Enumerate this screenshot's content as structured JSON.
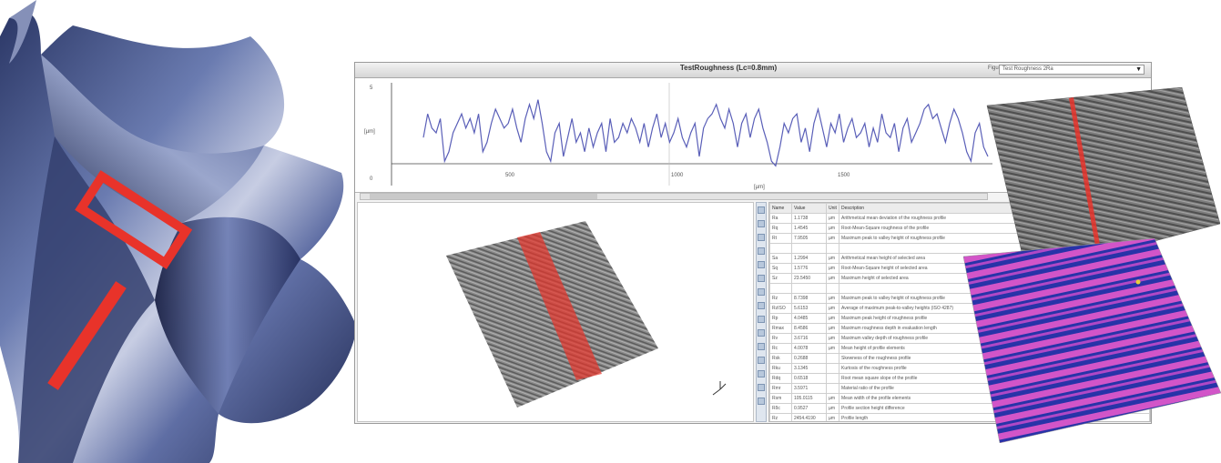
{
  "window": {
    "title": "TestRoughness (Lc=0.8mm)",
    "figure_label": "Figure",
    "figure_value": "Test Roughness 2Ra",
    "figure_arrow": "▼"
  },
  "profile_chart": {
    "y_unit": "[µm]",
    "x_unit": "[µm]",
    "x_ticks": [
      "500",
      "1000",
      "1500"
    ],
    "y_ticks": [
      "5",
      "0"
    ],
    "line_color": "#5a5fb8",
    "trace": [
      -1,
      4,
      1,
      0,
      3,
      -6,
      -4,
      0,
      2,
      4,
      1,
      3,
      0,
      4,
      -4,
      -2,
      2,
      5,
      3,
      1,
      2,
      5,
      1,
      -2,
      3,
      6,
      3,
      7,
      2,
      -4,
      -6,
      0,
      2,
      -5,
      -1,
      3,
      -2,
      0,
      -4,
      1,
      -3,
      0,
      2,
      -4,
      3,
      -2,
      -1,
      2,
      0,
      3,
      1,
      -2,
      2,
      -3,
      1,
      4,
      -1,
      2,
      -2,
      0,
      3,
      -1,
      -3,
      0,
      2,
      -5,
      1,
      3,
      4,
      6,
      3,
      1,
      5,
      2,
      -3,
      2,
      4,
      -1,
      3,
      5,
      1,
      -2,
      -6,
      -7,
      -3,
      2,
      0,
      3,
      4,
      -2,
      1,
      -4,
      2,
      5,
      1,
      -3,
      2,
      0,
      4,
      -2,
      1,
      3,
      -1,
      0,
      2,
      -3,
      1,
      -2,
      4,
      0,
      -1,
      2,
      -4,
      1,
      3,
      -2,
      0,
      2,
      5,
      6,
      3,
      4,
      1,
      -2,
      2,
      5,
      3,
      0,
      -4,
      -6,
      0,
      2,
      -3,
      -5
    ]
  },
  "toolbar": {
    "icons": [
      "zoom-icon",
      "pan-icon",
      "rotate-icon",
      "select-icon",
      "measure-icon",
      "export-icon",
      "grid-icon",
      "color-icon",
      "info-icon",
      "settings-icon",
      "profile-icon",
      "table-icon",
      "print-icon",
      "save-icon",
      "help-icon"
    ]
  },
  "table": {
    "headers": [
      "Name",
      "Value",
      "Unit",
      "Description"
    ],
    "rows": [
      [
        "Ra",
        "1.1738",
        "µm",
        "Arithmetical mean deviation of the roughness profile"
      ],
      [
        "Rq",
        "1.4545",
        "µm",
        "Root-Mean-Square roughness of the profile"
      ],
      [
        "Rt",
        "7.9505",
        "µm",
        "Maximum peak to valley height of roughness profile"
      ],
      [
        "",
        "",
        "",
        ""
      ],
      [
        "Sa",
        "1.2994",
        "µm",
        "Arithmetical mean height of selected area"
      ],
      [
        "Sq",
        "1.5776",
        "µm",
        "Root-Mean-Square height of selected area"
      ],
      [
        "Sz",
        "23.5450",
        "µm",
        "Maximum height of selected area"
      ],
      [
        "",
        "",
        "",
        ""
      ],
      [
        "Rz",
        "8.7398",
        "µm",
        "Maximum peak to valley height of roughness profile"
      ],
      [
        "RzISO",
        "5.6153",
        "µm",
        "Average of maximum peak-to-valley heights (ISO 4287)"
      ],
      [
        "Rp",
        "4.0485",
        "µm",
        "Maximum peak height of roughness profile"
      ],
      [
        "Rmax",
        "8.4586",
        "µm",
        "Maximum roughness depth in evaluation length"
      ],
      [
        "Rv",
        "3.6716",
        "µm",
        "Maximum valley depth of roughness profile"
      ],
      [
        "Rc",
        "4.0078",
        "µm",
        "Mean height of profile elements"
      ],
      [
        "Rsk",
        "0.2688",
        "",
        "Skewness of the roughness profile"
      ],
      [
        "Rku",
        "3.1345",
        "",
        "Kurtosis of the roughness profile"
      ],
      [
        "Rdq",
        "0.6518",
        "",
        "Root mean square slope of the profile"
      ],
      [
        "Rmr",
        "3.5971",
        "",
        "Material ratio of the profile"
      ],
      [
        "Rsm",
        "105.0115",
        "µm",
        "Mean width of the profile elements"
      ],
      [
        "Rδc",
        "0.9527",
        "µm",
        "Profile section height difference"
      ],
      [
        "Rz",
        "2454.4190",
        "µm",
        "Profile length"
      ]
    ]
  },
  "overlays": {
    "selection_color": "#e8332a",
    "surface_colors": [
      "#2833a8",
      "#d255c8"
    ]
  }
}
